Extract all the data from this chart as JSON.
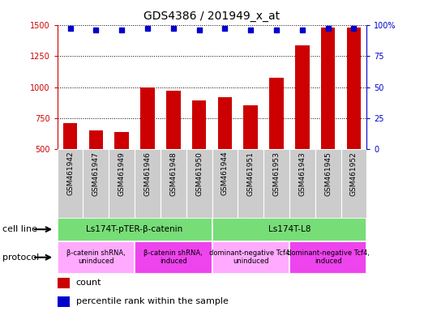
{
  "title": "GDS4386 / 201949_x_at",
  "samples": [
    "GSM461942",
    "GSM461947",
    "GSM461949",
    "GSM461946",
    "GSM461948",
    "GSM461950",
    "GSM461944",
    "GSM461951",
    "GSM461953",
    "GSM461943",
    "GSM461945",
    "GSM461952"
  ],
  "counts": [
    710,
    655,
    640,
    995,
    970,
    895,
    920,
    855,
    1075,
    1335,
    1480,
    1480
  ],
  "percentile_ranks": [
    97,
    96,
    96,
    97,
    97,
    96,
    97,
    96,
    96,
    96,
    97,
    97
  ],
  "bar_color": "#cc0000",
  "dot_color": "#0000cc",
  "ylim_left": [
    500,
    1500
  ],
  "ylim_right": [
    0,
    100
  ],
  "yticks_left": [
    500,
    750,
    1000,
    1250,
    1500
  ],
  "yticks_right": [
    0,
    25,
    50,
    75,
    100
  ],
  "ytick_right_labels": [
    "0",
    "25",
    "50",
    "75",
    "100%"
  ],
  "cell_line_groups": [
    {
      "label": "Ls174T-pTER-β-catenin",
      "start": 0,
      "end": 6,
      "color": "#77dd77"
    },
    {
      "label": "Ls174T-L8",
      "start": 6,
      "end": 12,
      "color": "#77dd77"
    }
  ],
  "protocol_groups": [
    {
      "label": "β-catenin shRNA,\nuninduced",
      "start": 0,
      "end": 3,
      "color": "#ffaaff"
    },
    {
      "label": "β-catenin shRNA,\ninduced",
      "start": 3,
      "end": 6,
      "color": "#ee44ee"
    },
    {
      "label": "dominant-negative Tcf4,\nuninduced",
      "start": 6,
      "end": 9,
      "color": "#ffaaff"
    },
    {
      "label": "dominant-negative Tcf4,\ninduced",
      "start": 9,
      "end": 12,
      "color": "#ee44ee"
    }
  ],
  "cell_line_label": "cell line",
  "protocol_label": "protocol",
  "legend_count_label": "count",
  "legend_pct_label": "percentile rank within the sample",
  "bg_color": "#ffffff",
  "tick_label_bg": "#cccccc",
  "right_axis_color": "#0000cc",
  "left_axis_color": "#cc0000",
  "figsize": [
    5.23,
    3.84
  ],
  "dpi": 100
}
